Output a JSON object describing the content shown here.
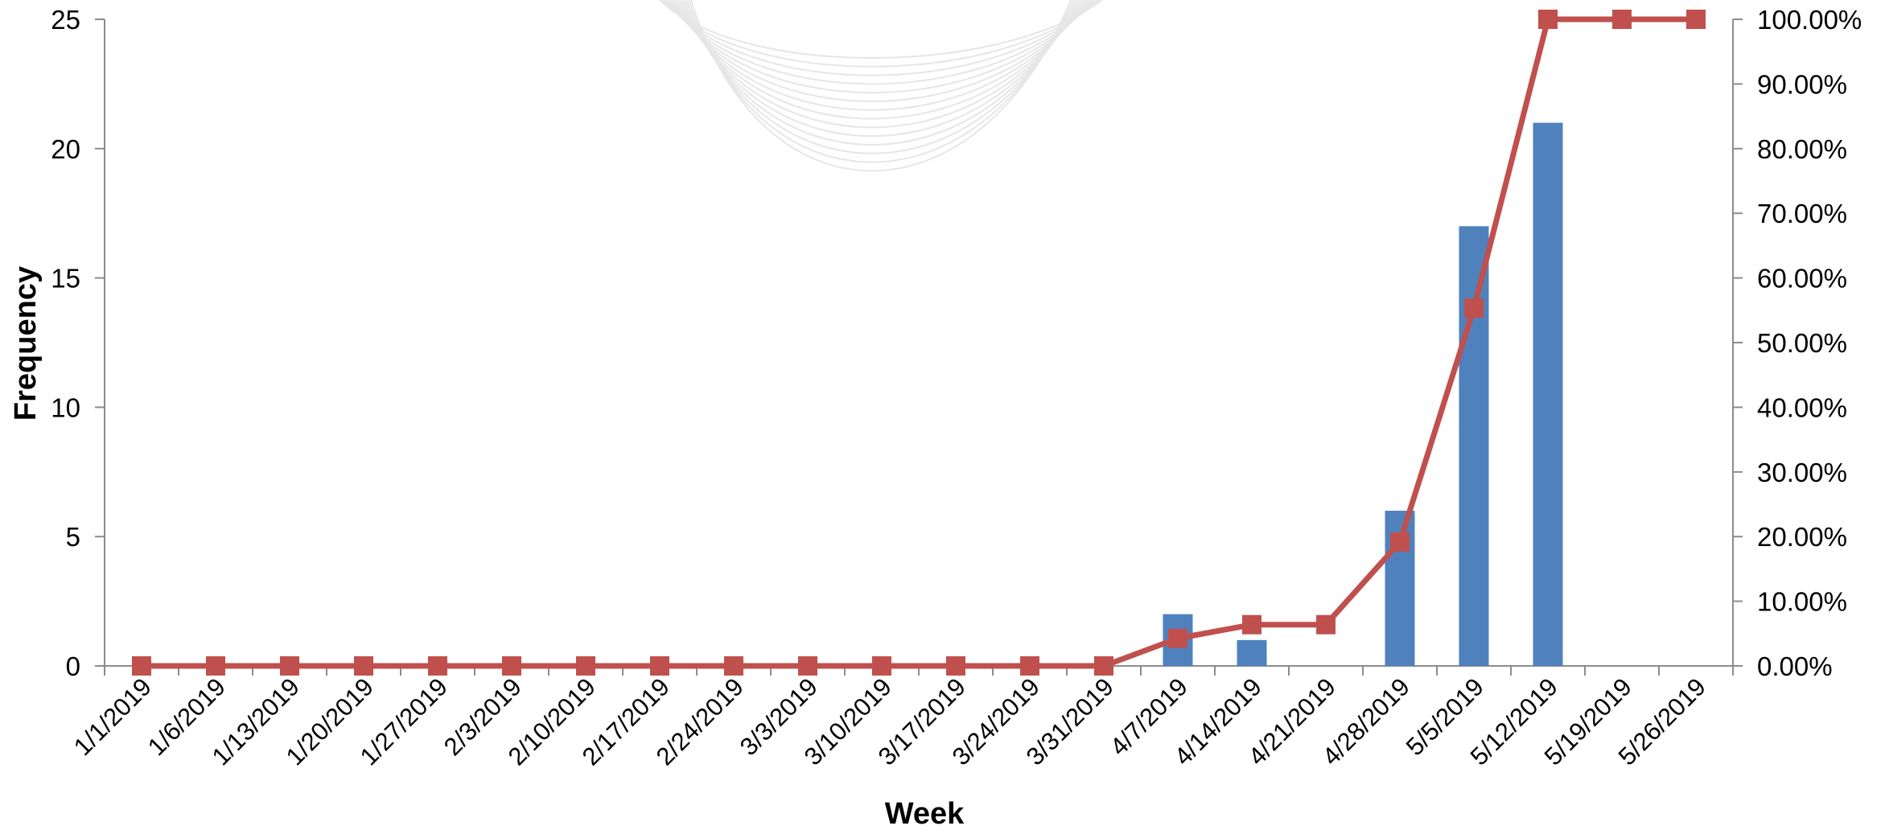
{
  "chart_data": {
    "type": "bar",
    "title": "",
    "xlabel": "Week",
    "ylabel": "Frequency",
    "categories": [
      "1/1/2019",
      "1/6/2019",
      "1/13/2019",
      "1/20/2019",
      "1/27/2019",
      "2/3/2019",
      "2/10/2019",
      "2/17/2019",
      "2/24/2019",
      "3/3/2019",
      "3/10/2019",
      "3/17/2019",
      "3/24/2019",
      "3/31/2019",
      "4/7/2019",
      "4/14/2019",
      "4/21/2019",
      "4/28/2019",
      "5/5/2019",
      "5/12/2019",
      "5/19/2019",
      "5/26/2019"
    ],
    "ylim": [
      0,
      25
    ],
    "yticks": [
      "0",
      "5",
      "10",
      "15",
      "20",
      "25"
    ],
    "y2lim": [
      0,
      1
    ],
    "y2ticks": [
      "0.00%",
      "10.00%",
      "20.00%",
      "30.00%",
      "40.00%",
      "50.00%",
      "60.00%",
      "70.00%",
      "80.00%",
      "90.00%",
      "100.00%"
    ],
    "grid": false,
    "series": [
      {
        "type": "bar",
        "axis": "left",
        "color": "#4f81bd",
        "values": [
          0,
          0,
          0,
          0,
          0,
          0,
          0,
          0,
          0,
          0,
          0,
          0,
          0,
          0,
          2,
          1,
          0,
          6,
          17,
          21,
          0,
          0
        ]
      },
      {
        "type": "line",
        "axis": "right",
        "color": "#c0504d",
        "marker": "square",
        "values": [
          0,
          0,
          0,
          0,
          0,
          0,
          0,
          0,
          0,
          0,
          0,
          0,
          0,
          0,
          0.0426,
          0.0638,
          0.0638,
          0.1915,
          0.5532,
          1.0,
          1.0,
          1.0
        ]
      }
    ]
  }
}
